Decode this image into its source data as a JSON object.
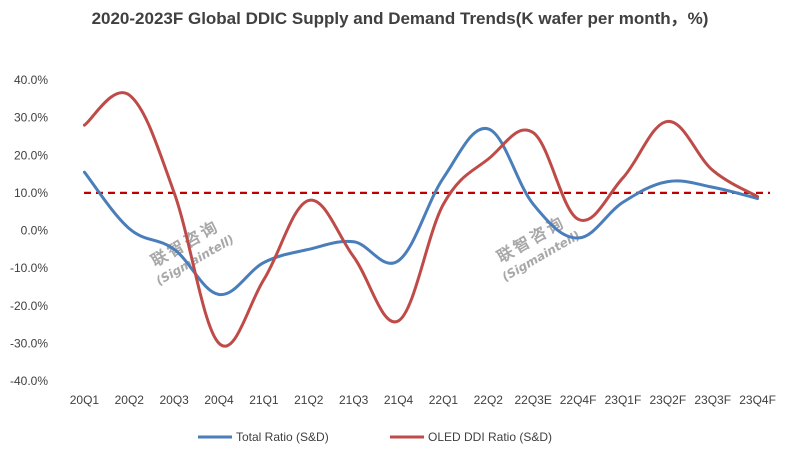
{
  "chart_data": {
    "type": "line",
    "title": "2020-2023F Global DDIC Supply and Demand Trends(K wafer per month，%)",
    "categories": [
      "20Q1",
      "20Q2",
      "20Q3",
      "20Q4",
      "21Q1",
      "21Q2",
      "21Q3",
      "21Q4",
      "22Q1",
      "22Q2",
      "22Q3E",
      "22Q4F",
      "23Q1F",
      "23Q2F",
      "23Q3F",
      "23Q4F"
    ],
    "ylim": [
      -40,
      40
    ],
    "yticks": [
      "40.0%",
      "30.0%",
      "20.0%",
      "10.0%",
      "0.0%",
      "-10.0%",
      "-20.0%",
      "-30.0%",
      "-40.0%"
    ],
    "ytick_values": [
      40,
      30,
      20,
      10,
      0,
      -10,
      -20,
      -30,
      -40
    ],
    "series": [
      {
        "name": "Total Ratio (S&D)",
        "color": "#4a7ebb",
        "values": [
          15.5,
          0.5,
          -5,
          -17,
          -8.5,
          -5,
          -3,
          -8,
          14,
          27,
          7,
          -2,
          7.5,
          13,
          11.5,
          8.5
        ]
      },
      {
        "name": "OLED DDI Ratio (S&D)",
        "color": "#be4b48",
        "values": [
          28,
          36,
          10,
          -30,
          -13,
          8,
          -7,
          -24,
          7,
          19,
          26,
          3,
          14,
          29,
          16,
          9
        ]
      }
    ],
    "reference_line": {
      "value": 10,
      "color": "#c00000",
      "style": "dashed"
    },
    "legend": "bottom",
    "grid": false
  },
  "watermark": {
    "chinese": "联智咨询",
    "english": "(Sigmaintell)"
  }
}
